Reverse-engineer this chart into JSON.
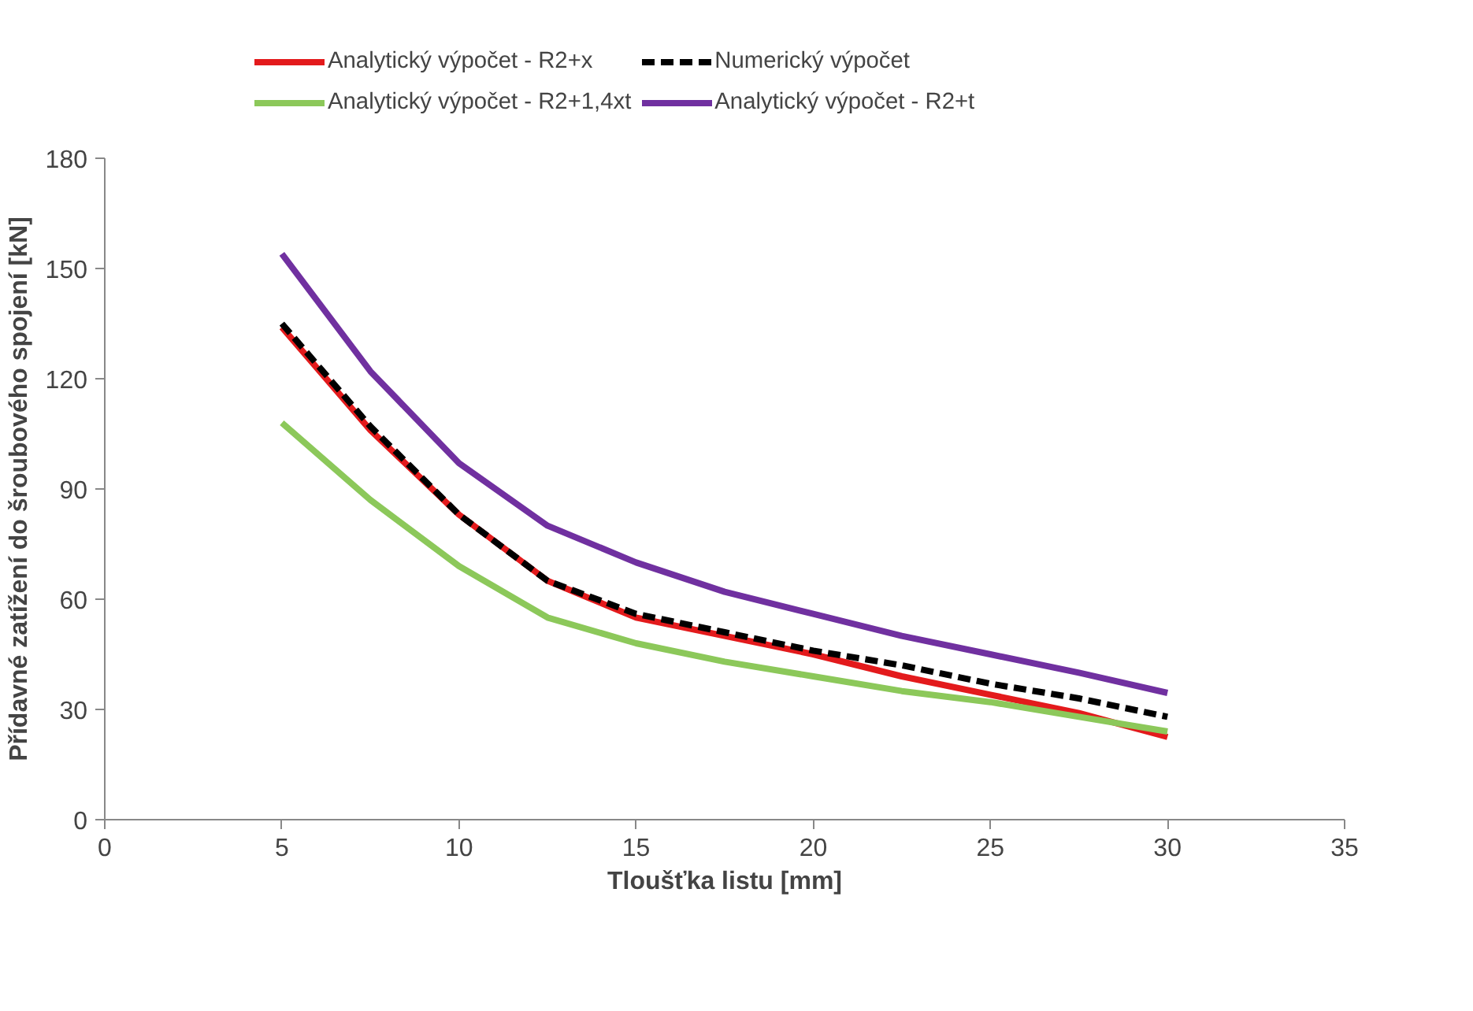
{
  "chart_data": {
    "type": "line",
    "xlabel": "Tloušťka listu [mm]",
    "ylabel": "Přídavné zatížení do šroubového spojení [kN]",
    "x": [
      5,
      7.5,
      10,
      12.5,
      15,
      17.5,
      20,
      22.5,
      25,
      27.5,
      30
    ],
    "series": [
      {
        "name": "Analytický výpočet - R2+x",
        "color": "#e31a1c",
        "values": [
          134,
          106,
          83,
          65,
          55,
          50,
          45,
          39,
          34,
          29,
          22.5
        ]
      },
      {
        "name": "Numerický výpočet",
        "color": "#000000",
        "line_style": "dashed",
        "values": [
          135,
          107,
          83,
          65,
          56,
          51,
          46,
          42,
          37,
          33,
          28
        ]
      },
      {
        "name": "Analytický výpočet - R2+1,4xt",
        "color": "#8cc85a",
        "values": [
          108,
          87,
          69,
          55,
          48,
          43,
          39,
          35,
          32,
          28,
          24
        ]
      },
      {
        "name": "Analytický výpočet - R2+t",
        "color": "#7030a0",
        "values": [
          154,
          122,
          97,
          80,
          70,
          62,
          56,
          50,
          45,
          40,
          34.5
        ]
      }
    ],
    "xlim": [
      0,
      35
    ],
    "xticks": [
      0,
      5,
      10,
      15,
      20,
      25,
      30,
      35
    ],
    "ylim": [
      0,
      180
    ],
    "yticks": [
      0,
      30,
      60,
      90,
      120,
      150,
      180
    ],
    "grid": false,
    "legend": "top",
    "marker": "none",
    "line_style": "solid"
  }
}
